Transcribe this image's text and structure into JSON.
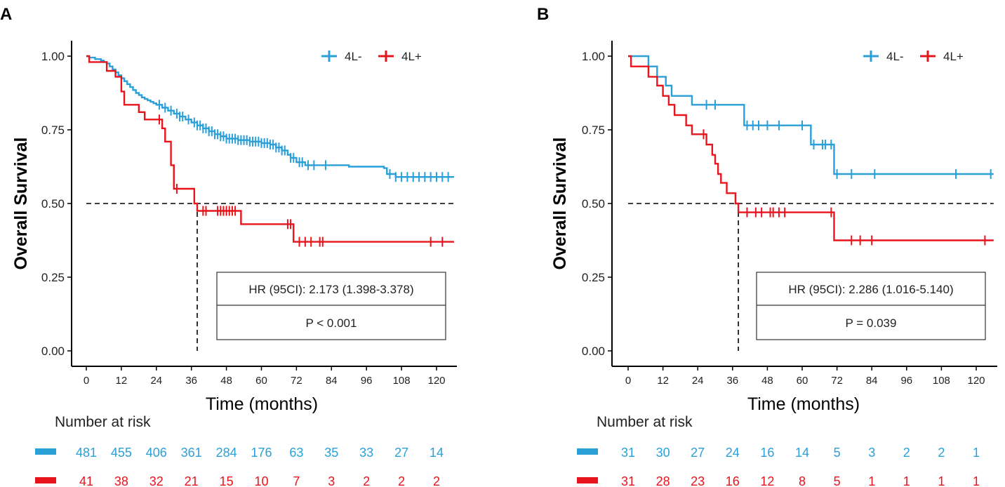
{
  "colors": {
    "series_4L_minus": "#2a9fd8",
    "series_4L_plus": "#e8141d",
    "axis": "#000000",
    "reference": "#000000"
  },
  "chart_data": [
    {
      "type": "line",
      "subtype": "kaplan-meier",
      "panel": "A",
      "xlabel": "Time (months)",
      "ylabel": "Overall Survival",
      "xlim": [
        -5,
        126
      ],
      "ylim": [
        -0.05,
        1.05
      ],
      "xticks": [
        0,
        12,
        24,
        36,
        48,
        60,
        72,
        84,
        96,
        108,
        120
      ],
      "yticks": [
        0,
        0.25,
        0.5,
        0.75,
        1.0
      ],
      "ytick_labels": [
        "0.00",
        "0.25",
        "0.50",
        "0.75",
        "1.00"
      ],
      "legend": {
        "position": "top-right",
        "entries": [
          "4L-",
          "4L+"
        ]
      },
      "series": [
        {
          "name": "4L-",
          "color": "#2a9fd8",
          "steps": [
            [
              0,
              1.0
            ],
            [
              1,
              0.995
            ],
            [
              3,
              0.99
            ],
            [
              5,
              0.985
            ],
            [
              6,
              0.98
            ],
            [
              7,
              0.975
            ],
            [
              8,
              0.965
            ],
            [
              9,
              0.955
            ],
            [
              10,
              0.945
            ],
            [
              11,
              0.935
            ],
            [
              12,
              0.925
            ],
            [
              13,
              0.915
            ],
            [
              14,
              0.905
            ],
            [
              15,
              0.895
            ],
            [
              16,
              0.885
            ],
            [
              17,
              0.875
            ],
            [
              18,
              0.868
            ],
            [
              19,
              0.86
            ],
            [
              20,
              0.855
            ],
            [
              21,
              0.85
            ],
            [
              22,
              0.845
            ],
            [
              23,
              0.84
            ],
            [
              24,
              0.835
            ],
            [
              26,
              0.825
            ],
            [
              28,
              0.815
            ],
            [
              30,
              0.805
            ],
            [
              32,
              0.795
            ],
            [
              34,
              0.785
            ],
            [
              36,
              0.775
            ],
            [
              38,
              0.765
            ],
            [
              40,
              0.755
            ],
            [
              42,
              0.745
            ],
            [
              44,
              0.735
            ],
            [
              46,
              0.728
            ],
            [
              48,
              0.72
            ],
            [
              52,
              0.715
            ],
            [
              56,
              0.71
            ],
            [
              60,
              0.705
            ],
            [
              63,
              0.7
            ],
            [
              65,
              0.69
            ],
            [
              67,
              0.68
            ],
            [
              69,
              0.665
            ],
            [
              70,
              0.655
            ],
            [
              72,
              0.64
            ],
            [
              75,
              0.63
            ],
            [
              84,
              0.63
            ],
            [
              90,
              0.625
            ],
            [
              102,
              0.62
            ],
            [
              103,
              0.6
            ],
            [
              106,
              0.59
            ],
            [
              126,
              0.59
            ]
          ],
          "censor_times": [
            25,
            27,
            29,
            31,
            32,
            33,
            35,
            37,
            38,
            39,
            40,
            41,
            42,
            43,
            44,
            45,
            46,
            47,
            48,
            49,
            50,
            51,
            52,
            53,
            54,
            55,
            56,
            57,
            58,
            59,
            60,
            61,
            62,
            63,
            64,
            65,
            66,
            67,
            68,
            70,
            71,
            73,
            74,
            76,
            78,
            82,
            104,
            106,
            108,
            110,
            112,
            114,
            116,
            118,
            120,
            122,
            124
          ]
        },
        {
          "name": "4L+",
          "color": "#e8141d",
          "steps": [
            [
              0,
              1.0
            ],
            [
              1,
              0.98
            ],
            [
              7,
              0.95
            ],
            [
              10,
              0.93
            ],
            [
              12,
              0.88
            ],
            [
              13,
              0.835
            ],
            [
              18,
              0.81
            ],
            [
              20,
              0.785
            ],
            [
              26,
              0.755
            ],
            [
              27,
              0.71
            ],
            [
              29,
              0.63
            ],
            [
              30,
              0.55
            ],
            [
              37,
              0.5
            ],
            [
              38,
              0.475
            ],
            [
              53,
              0.43
            ],
            [
              71,
              0.37
            ],
            [
              126,
              0.37
            ]
          ],
          "censor_times": [
            25,
            31,
            40,
            41,
            45,
            46,
            47,
            48,
            49,
            50,
            51,
            69,
            70,
            73,
            75,
            77,
            80,
            81,
            118,
            122
          ]
        }
      ],
      "median_reference": {
        "y": 0.5,
        "x": 38
      },
      "annotation": {
        "hr_text": "HR (95CI): 2.173 (1.398-3.378)",
        "p_text": "P < 0.001"
      },
      "risk_table": {
        "title": "Number at risk",
        "rows": [
          {
            "group": "4L-",
            "color": "#2a9fd8",
            "counts": [
              "481",
              "455",
              "406",
              "361",
              "284",
              "176",
              "63",
              "35",
              "33",
              "27",
              "14"
            ]
          },
          {
            "group": "4L+",
            "color": "#e8141d",
            "counts": [
              "41",
              "38",
              "32",
              "21",
              "15",
              "10",
              "7",
              "3",
              "2",
              "2",
              "2"
            ]
          }
        ]
      }
    },
    {
      "type": "line",
      "subtype": "kaplan-meier",
      "panel": "B",
      "xlabel": "Time (months)",
      "ylabel": "Overall Survival",
      "xlim": [
        -5,
        126
      ],
      "ylim": [
        -0.05,
        1.05
      ],
      "xticks": [
        0,
        12,
        24,
        36,
        48,
        60,
        72,
        84,
        96,
        108,
        120
      ],
      "yticks": [
        0,
        0.25,
        0.5,
        0.75,
        1.0
      ],
      "ytick_labels": [
        "0.00",
        "0.25",
        "0.50",
        "0.75",
        "1.00"
      ],
      "legend": {
        "position": "top-right",
        "entries": [
          "4L-",
          "4L+"
        ]
      },
      "series": [
        {
          "name": "4L-",
          "color": "#2a9fd8",
          "steps": [
            [
              0,
              1.0
            ],
            [
              7,
              0.965
            ],
            [
              10,
              0.93
            ],
            [
              13,
              0.9
            ],
            [
              15,
              0.865
            ],
            [
              22,
              0.835
            ],
            [
              40,
              0.765
            ],
            [
              63,
              0.7
            ],
            [
              71,
              0.6
            ],
            [
              126,
              0.6
            ]
          ],
          "censor_times": [
            27,
            30,
            41,
            43,
            45,
            48,
            52,
            60,
            64,
            67,
            68,
            70,
            72,
            77,
            85,
            113,
            125
          ]
        },
        {
          "name": "4L+",
          "color": "#e8141d",
          "steps": [
            [
              0,
              1.0
            ],
            [
              1,
              0.965
            ],
            [
              7,
              0.93
            ],
            [
              10,
              0.9
            ],
            [
              12,
              0.865
            ],
            [
              14,
              0.835
            ],
            [
              16,
              0.8
            ],
            [
              20,
              0.765
            ],
            [
              22,
              0.735
            ],
            [
              27,
              0.7
            ],
            [
              29,
              0.665
            ],
            [
              30,
              0.635
            ],
            [
              31,
              0.6
            ],
            [
              32,
              0.57
            ],
            [
              34,
              0.535
            ],
            [
              37,
              0.5
            ],
            [
              38,
              0.47
            ],
            [
              71,
              0.375
            ],
            [
              126,
              0.375
            ]
          ],
          "censor_times": [
            26,
            41,
            44,
            46,
            49,
            50,
            52,
            54,
            70,
            77,
            80,
            84,
            123
          ]
        }
      ],
      "median_reference": {
        "y": 0.5,
        "x": 38
      },
      "annotation": {
        "hr_text": "HR (95CI): 2.286 (1.016-5.140)",
        "p_text": "P = 0.039"
      },
      "risk_table": {
        "title": "Number at risk",
        "rows": [
          {
            "group": "4L-",
            "color": "#2a9fd8",
            "counts": [
              "31",
              "30",
              "27",
              "24",
              "16",
              "14",
              "5",
              "3",
              "2",
              "2",
              "1"
            ]
          },
          {
            "group": "4L+",
            "color": "#e8141d",
            "counts": [
              "31",
              "28",
              "23",
              "16",
              "12",
              "8",
              "5",
              "1",
              "1",
              "1",
              "1"
            ]
          }
        ]
      }
    }
  ]
}
